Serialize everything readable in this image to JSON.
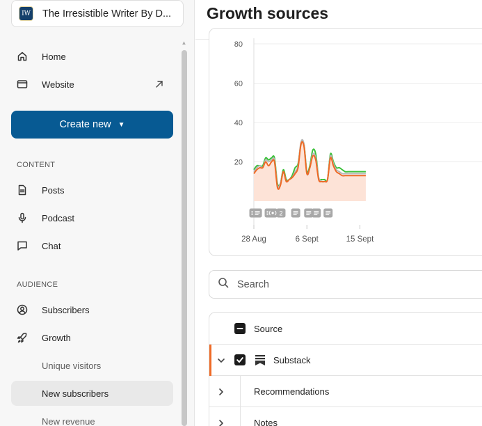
{
  "sidebar": {
    "publication": {
      "logo_text": "IW",
      "name": "The Irresistible Writer By D..."
    },
    "top_items": [
      {
        "label": "Home",
        "icon": "home-icon"
      },
      {
        "label": "Website",
        "icon": "browser-window-icon"
      }
    ],
    "create_button": {
      "label": "Create new",
      "caret": "▼",
      "color": "#075a93"
    },
    "content_section": {
      "label": "CONTENT",
      "items": [
        {
          "label": "Posts",
          "icon": "document-icon"
        },
        {
          "label": "Podcast",
          "icon": "microphone-icon"
        },
        {
          "label": "Chat",
          "icon": "chat-bubble-icon"
        }
      ]
    },
    "audience_section": {
      "label": "AUDIENCE",
      "items": [
        {
          "label": "Subscribers",
          "icon": "user-circle-icon"
        },
        {
          "label": "Growth",
          "icon": "rocket-icon"
        }
      ],
      "growth_subitems": [
        {
          "label": "Unique visitors"
        },
        {
          "label": "New subscribers",
          "active": true
        },
        {
          "label": "New revenue"
        }
      ]
    }
  },
  "main": {
    "title": "Growth sources",
    "search": {
      "placeholder": "Search"
    },
    "table": {
      "header": {
        "column_source": "Source"
      },
      "rows": [
        {
          "label": "Substack",
          "expanded": true,
          "checked": true,
          "accent_color": "#ef6a26"
        },
        {
          "label": "Recommendations"
        },
        {
          "label": "Notes"
        }
      ]
    }
  },
  "chart_data": {
    "type": "area",
    "title": "",
    "xlabel": "",
    "ylabel": "",
    "ylim": [
      0,
      80
    ],
    "y_ticks": [
      20,
      40,
      60,
      80
    ],
    "x_ticks": [
      "28 Aug",
      "6 Sept",
      "15 Sept"
    ],
    "grid": true,
    "series": [
      {
        "color": "#3cc13b",
        "x": [
          0,
          0.5,
          1,
          1.5,
          2,
          2.5,
          3,
          3.5,
          4,
          4.5,
          5,
          5.5,
          6,
          6.5,
          7,
          7.5,
          8,
          8.5,
          9,
          9.5,
          10,
          10.5,
          11,
          11.5,
          12,
          12.5,
          13,
          13.5,
          14,
          14.5,
          15,
          15.5,
          16,
          16.5,
          17,
          17.5,
          18,
          18.5,
          19
        ],
        "y": [
          16,
          18,
          18,
          18,
          22,
          21,
          22,
          22,
          9,
          9,
          16,
          11,
          11,
          13,
          17,
          19,
          29,
          29,
          15,
          18,
          26,
          24,
          12,
          11,
          11,
          11,
          24,
          20,
          17,
          17,
          16,
          15,
          15,
          15,
          15,
          15,
          15,
          15,
          15
        ],
        "fill": false
      },
      {
        "color": "#b7b7b7",
        "x": [
          0,
          0.5,
          1,
          1.5,
          2,
          2.5,
          3,
          3.5,
          4,
          4.5,
          5,
          5.5,
          6,
          6.5,
          7,
          7.5,
          8,
          8.5,
          9,
          9.5,
          10,
          10.5,
          11,
          11.5,
          12,
          12.5,
          13,
          13.5,
          14,
          14.5,
          15,
          15.5,
          16,
          16.5,
          17,
          17.5,
          18,
          18.5,
          19
        ],
        "y": [
          15,
          17,
          18,
          17,
          21,
          20,
          21,
          21,
          8,
          9,
          15,
          10,
          11,
          12,
          15,
          18,
          30,
          29,
          14,
          17,
          24,
          22,
          12,
          10,
          10,
          11,
          23,
          19,
          16,
          15,
          14,
          14,
          14,
          14,
          14,
          14,
          14,
          14,
          14
        ],
        "fill": false
      },
      {
        "color": "#ef6a26",
        "x": [
          0,
          0.5,
          1,
          1.5,
          2,
          2.5,
          3,
          3.5,
          4,
          4.5,
          5,
          5.5,
          6,
          6.5,
          7,
          7.5,
          8,
          8.5,
          9,
          9.5,
          10,
          10.5,
          11,
          11.5,
          12,
          12.5,
          13,
          13.5,
          14,
          14.5,
          15,
          15.5,
          16,
          16.5,
          17,
          17.5,
          18,
          18.5,
          19
        ],
        "y": [
          14,
          16,
          17,
          17,
          20,
          18,
          20,
          20,
          7,
          8,
          15,
          10,
          11,
          12,
          14,
          17,
          29,
          28,
          14,
          17,
          23,
          21,
          11,
          10,
          10,
          11,
          22,
          18,
          15,
          14,
          13,
          13,
          13,
          13,
          13,
          13,
          13,
          13,
          13
        ],
        "fill": true,
        "fill_color": "#fde3d7"
      }
    ],
    "post_markers": [
      {
        "x": 0,
        "type": "post"
      },
      {
        "x": 0.6,
        "type": "post"
      },
      {
        "x": 2.6,
        "type": "post"
      },
      {
        "x": 3.2,
        "type": "podcast"
      },
      {
        "x": 4.6,
        "type": "count",
        "label": "2"
      },
      {
        "x": 7.1,
        "type": "post"
      },
      {
        "x": 9.3,
        "type": "post"
      },
      {
        "x": 10.6,
        "type": "post"
      },
      {
        "x": 12.6,
        "type": "post"
      }
    ]
  }
}
